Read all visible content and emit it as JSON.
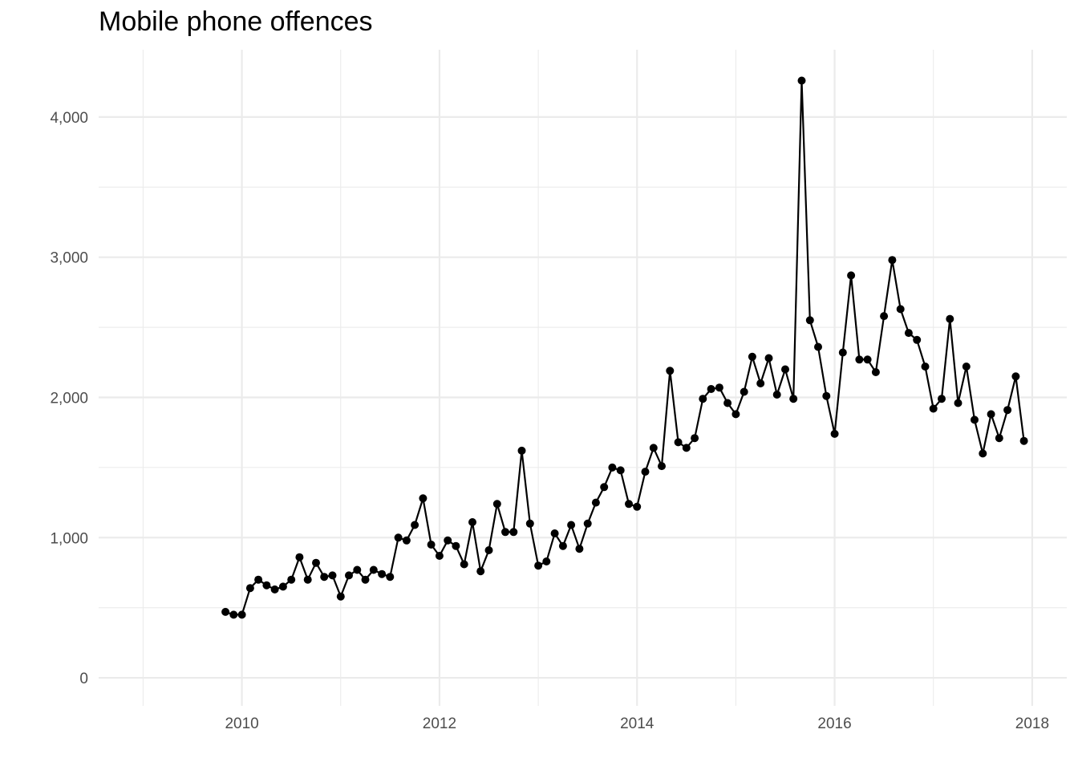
{
  "chart_data": {
    "type": "line",
    "title": "Mobile phone offences",
    "xlabel": "",
    "ylabel": "",
    "xlim": [
      2008.55,
      2018.35
    ],
    "ylim": [
      -200,
      4480
    ],
    "x_ticks": [
      2010,
      2012,
      2014,
      2016,
      2018
    ],
    "x_tick_labels": [
      "2010",
      "2012",
      "2014",
      "2016",
      "2018"
    ],
    "y_ticks": [
      0,
      1000,
      2000,
      3000,
      4000
    ],
    "y_tick_labels": [
      "0",
      "1,000",
      "2,000",
      "3,000",
      "4,000"
    ],
    "grid": true,
    "colors": {
      "line": "#000000",
      "grid": "#ebebeb",
      "text": "#4d4d4d"
    },
    "series": [
      {
        "x": [
          "2009-11",
          "2009-12",
          "2010-01",
          "2010-02",
          "2010-03",
          "2010-04",
          "2010-05",
          "2010-06",
          "2010-07",
          "2010-08",
          "2010-09",
          "2010-10",
          "2010-11",
          "2010-12",
          "2011-01",
          "2011-02",
          "2011-03",
          "2011-04",
          "2011-05",
          "2011-06",
          "2011-07",
          "2011-08",
          "2011-09",
          "2011-10",
          "2011-11",
          "2011-12",
          "2012-01",
          "2012-02",
          "2012-03",
          "2012-04",
          "2012-05",
          "2012-06",
          "2012-07",
          "2012-08",
          "2012-09",
          "2012-10",
          "2012-11",
          "2012-12",
          "2013-01",
          "2013-02",
          "2013-03",
          "2013-04",
          "2013-05",
          "2013-06",
          "2013-07",
          "2013-08",
          "2013-09",
          "2013-10",
          "2013-11",
          "2013-12",
          "2014-01",
          "2014-02",
          "2014-03",
          "2014-04",
          "2014-05",
          "2014-06",
          "2014-07",
          "2014-08",
          "2014-09",
          "2014-10",
          "2014-11",
          "2014-12",
          "2015-01",
          "2015-02",
          "2015-03",
          "2015-04",
          "2015-05",
          "2015-06",
          "2015-07",
          "2015-08",
          "2015-09",
          "2015-10",
          "2015-11",
          "2015-12",
          "2016-01",
          "2016-02",
          "2016-03",
          "2016-04",
          "2016-05",
          "2016-06",
          "2016-07",
          "2016-08",
          "2016-09",
          "2016-10",
          "2016-11",
          "2016-12",
          "2017-01",
          "2017-02",
          "2017-03",
          "2017-04",
          "2017-05",
          "2017-06",
          "2017-07",
          "2017-08",
          "2017-09",
          "2017-10",
          "2017-11",
          "2017-12"
        ],
        "values": [
          470,
          450,
          450,
          640,
          700,
          660,
          630,
          650,
          700,
          860,
          700,
          820,
          720,
          730,
          580,
          730,
          770,
          700,
          770,
          740,
          720,
          1000,
          980,
          1090,
          1280,
          950,
          870,
          980,
          940,
          810,
          1110,
          760,
          910,
          1240,
          1040,
          1040,
          1620,
          1100,
          800,
          830,
          1030,
          940,
          1090,
          920,
          1100,
          1250,
          1360,
          1500,
          1480,
          1240,
          1220,
          1470,
          1640,
          1510,
          2190,
          1680,
          1640,
          1710,
          1990,
          2060,
          2070,
          1960,
          1880,
          2040,
          2290,
          2100,
          2280,
          2020,
          2200,
          1990,
          4260,
          2550,
          2360,
          2010,
          1740,
          2320,
          2870,
          2270,
          2270,
          2180,
          2580,
          2980,
          2630,
          2460,
          2410,
          2220,
          1920,
          1990,
          2560,
          1960,
          2220,
          1840,
          1600,
          1880,
          1710,
          1910,
          2150,
          1690
        ]
      }
    ]
  }
}
